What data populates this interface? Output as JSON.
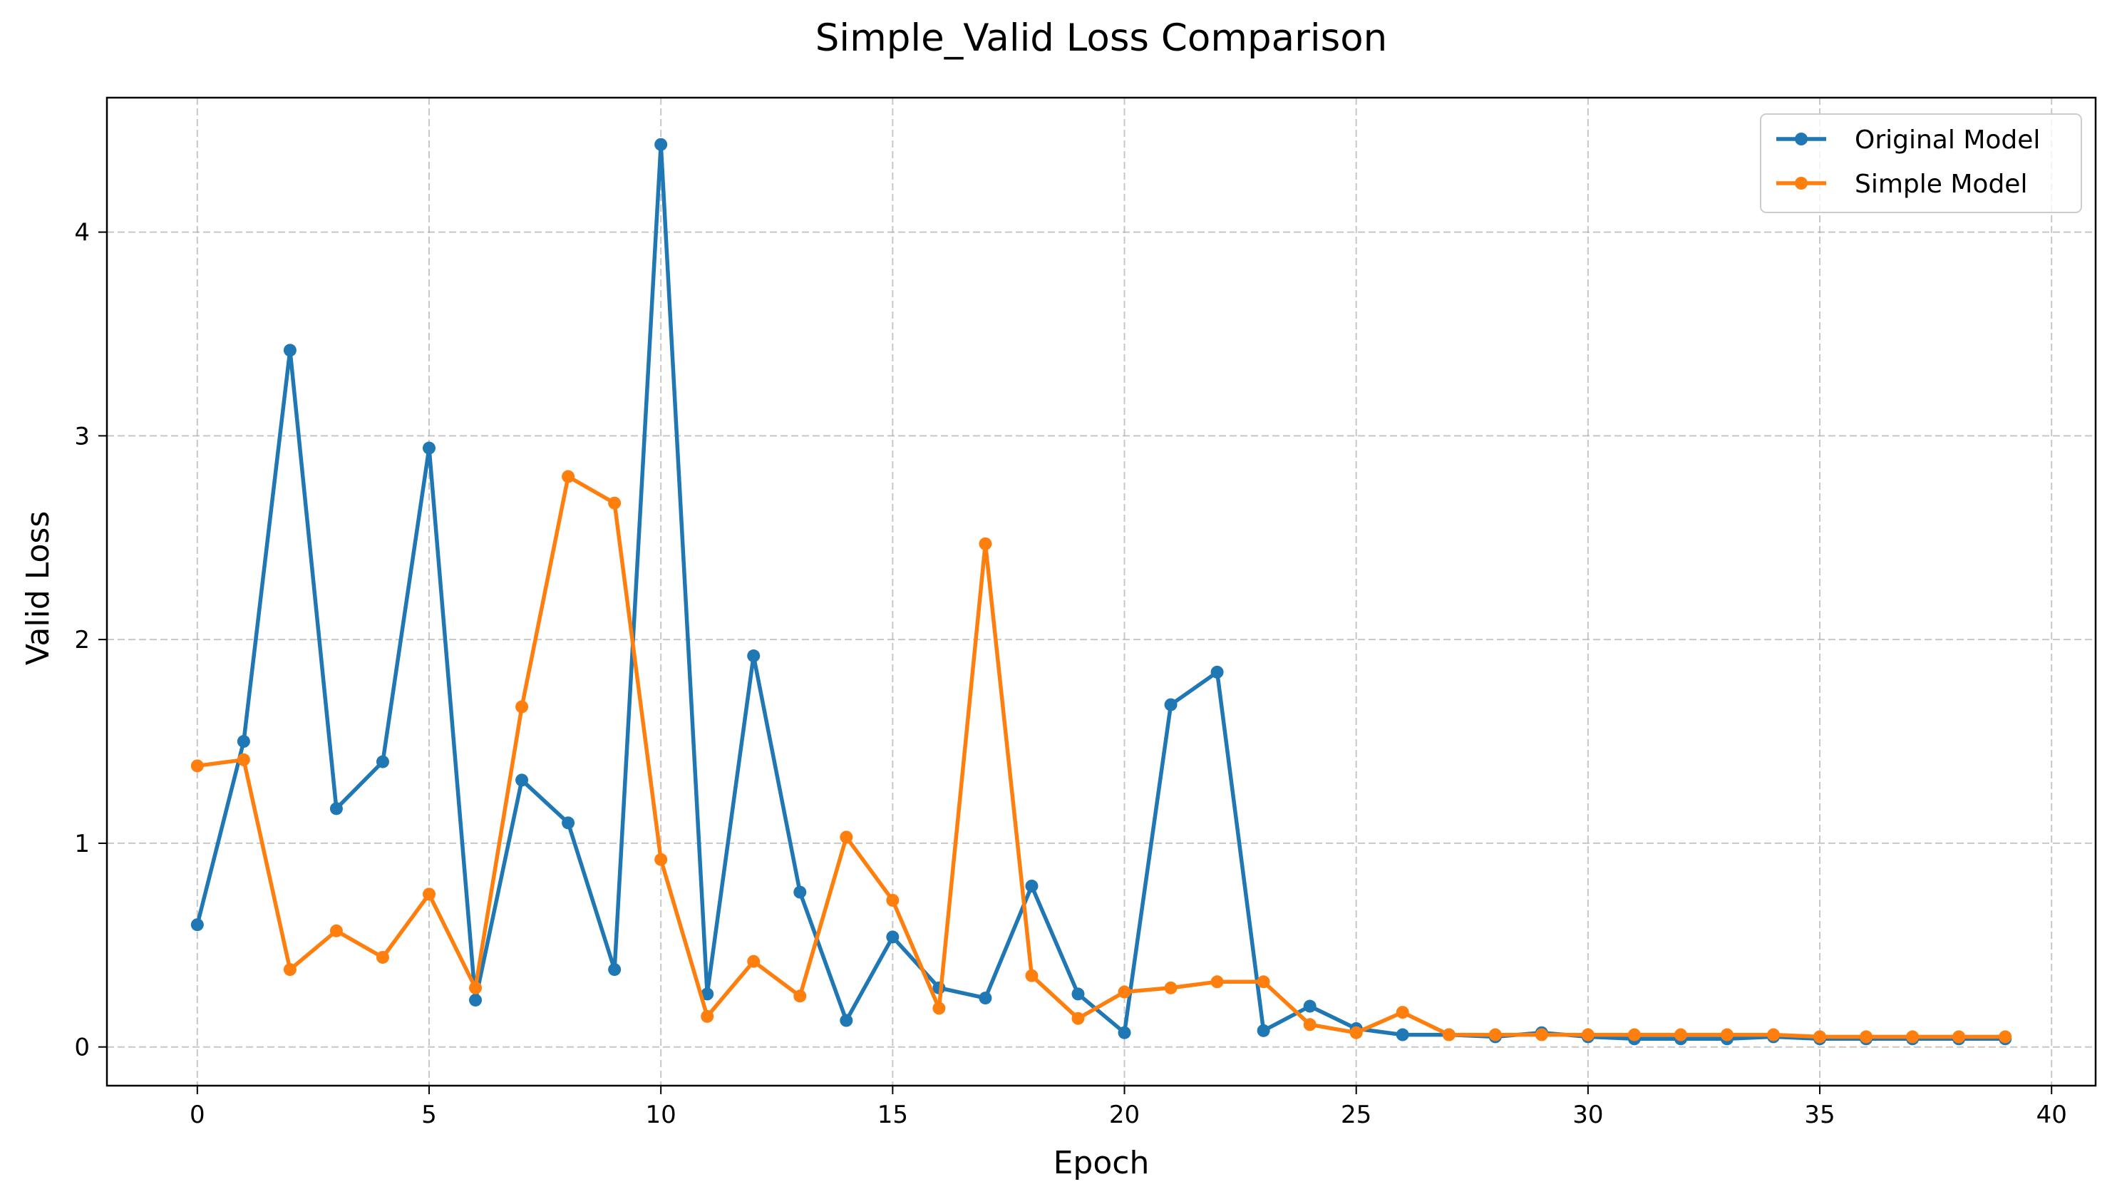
{
  "chart_data": {
    "type": "line",
    "title": "Simple_Valid Loss Comparison",
    "xlabel": "Epoch",
    "ylabel": "Valid Loss",
    "xlim": [
      -1.95,
      40.95
    ],
    "ylim": [
      -0.19,
      4.66
    ],
    "xticks": [
      0,
      5,
      10,
      15,
      20,
      25,
      30,
      35,
      40
    ],
    "yticks": [
      0,
      1,
      2,
      3,
      4
    ],
    "grid": true,
    "legend_position": "upper right",
    "x": [
      0,
      1,
      2,
      3,
      4,
      5,
      6,
      7,
      8,
      9,
      10,
      11,
      12,
      13,
      14,
      15,
      16,
      17,
      18,
      19,
      20,
      21,
      22,
      23,
      24,
      25,
      26,
      27,
      28,
      29,
      30,
      31,
      32,
      33,
      34,
      35,
      36,
      37,
      38,
      39
    ],
    "series": [
      {
        "name": "Original Model",
        "color": "#1f77b4",
        "values": [
          0.6,
          1.5,
          3.42,
          1.17,
          1.4,
          2.94,
          0.23,
          1.31,
          1.1,
          0.38,
          4.43,
          0.26,
          1.92,
          0.76,
          0.13,
          0.54,
          0.29,
          0.24,
          0.79,
          0.26,
          0.07,
          1.68,
          1.84,
          0.08,
          0.2,
          0.09,
          0.06,
          0.06,
          0.05,
          0.07,
          0.05,
          0.04,
          0.04,
          0.04,
          0.05,
          0.04,
          0.04,
          0.04,
          0.04,
          0.04
        ]
      },
      {
        "name": "Simple Model",
        "color": "#ff7f0e",
        "values": [
          1.38,
          1.41,
          0.38,
          0.57,
          0.44,
          0.75,
          0.29,
          1.67,
          2.8,
          2.67,
          0.92,
          0.15,
          0.42,
          0.25,
          1.03,
          0.72,
          0.19,
          2.47,
          0.35,
          0.14,
          0.27,
          0.29,
          0.32,
          0.32,
          0.11,
          0.07,
          0.17,
          0.06,
          0.06,
          0.06,
          0.06,
          0.06,
          0.06,
          0.06,
          0.06,
          0.05,
          0.05,
          0.05,
          0.05,
          0.05
        ]
      }
    ]
  }
}
